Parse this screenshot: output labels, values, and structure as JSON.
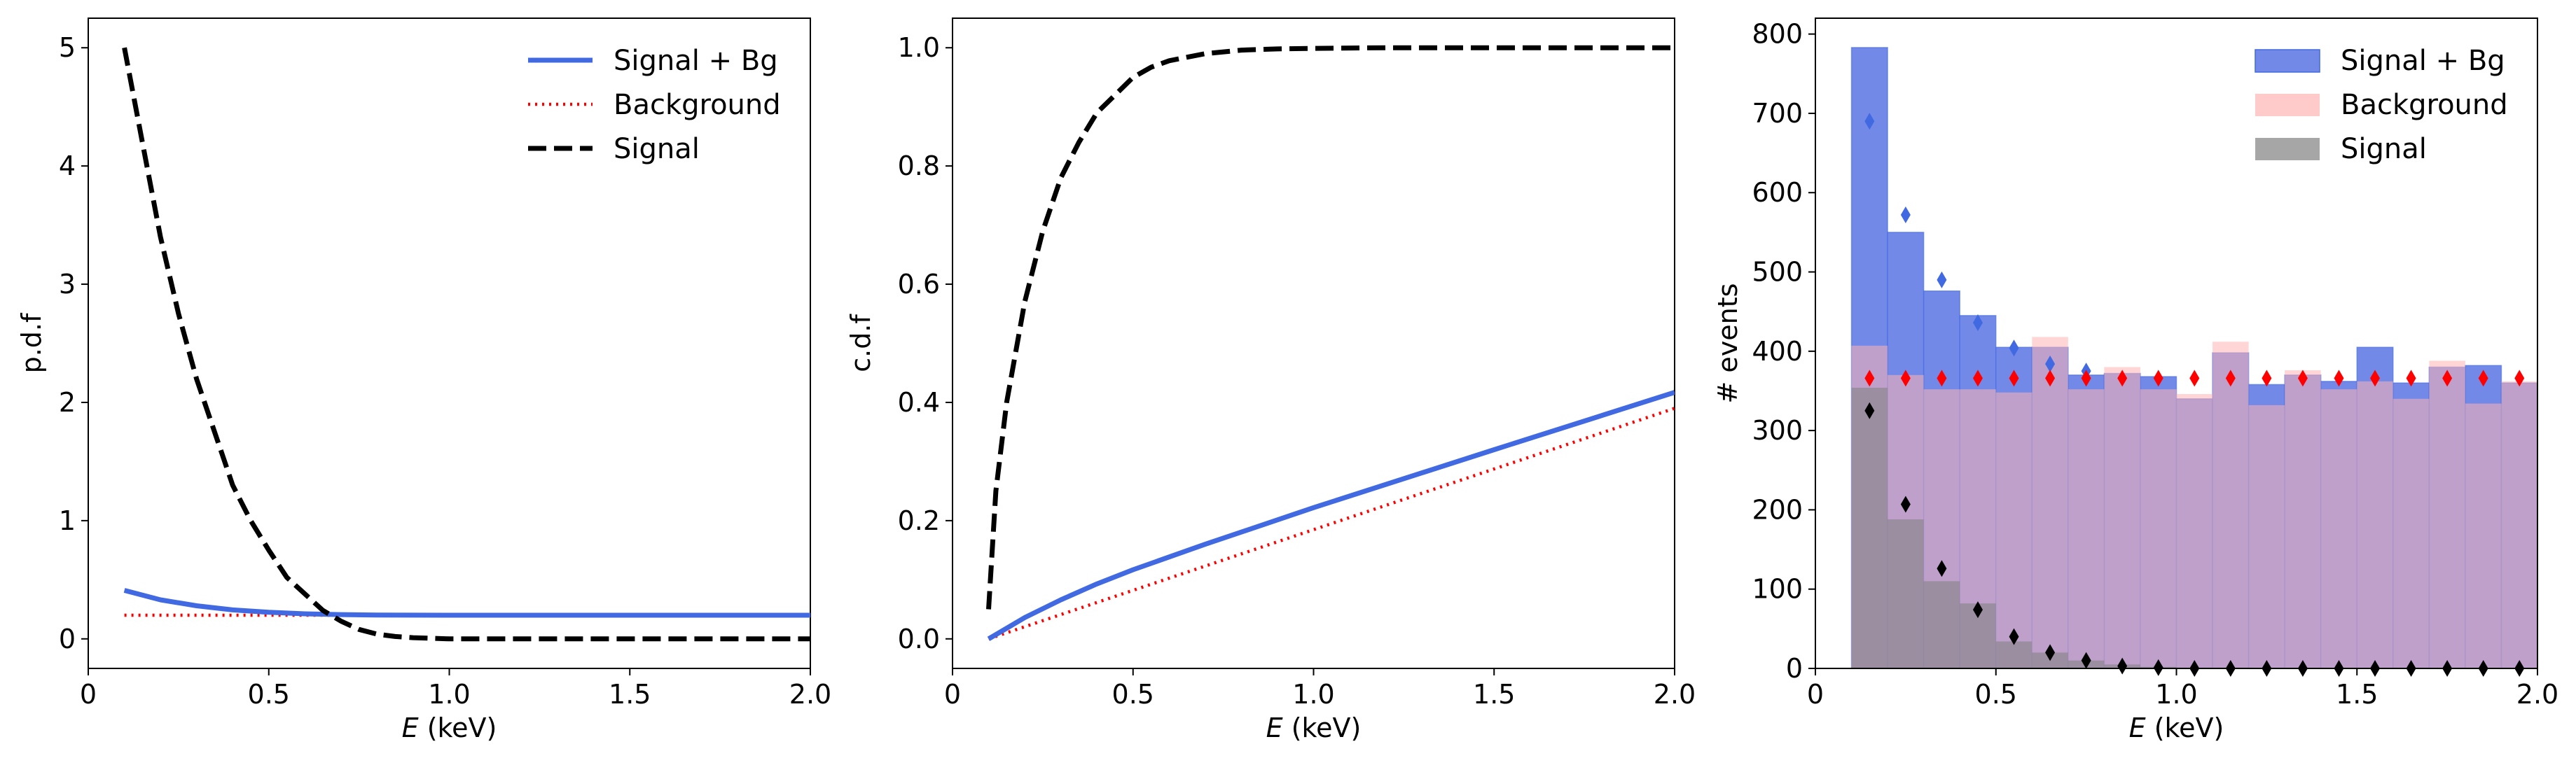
{
  "colors": {
    "signal_bg": "#4169e1",
    "background": "#ff0000",
    "signal": "#000000",
    "hist_signal_bg": "#7289e8",
    "hist_background": "#ffb3b3",
    "hist_signal": "#808080"
  },
  "chart_data": [
    {
      "type": "line",
      "xlabel_italic": "E",
      "xlabel_unit": " (keV)",
      "ylabel": "p.d.f",
      "xlim": [
        0,
        2.0
      ],
      "ylim": [
        -0.25,
        5.25
      ],
      "xticks": [
        0,
        0.5,
        1.0,
        1.5,
        2.0
      ],
      "xtick_labels": [
        "0",
        "0.5",
        "1.0",
        "1.5",
        "2.0"
      ],
      "yticks": [
        0,
        1,
        2,
        3,
        4,
        5
      ],
      "ytick_labels": [
        "0",
        "1",
        "2",
        "3",
        "4",
        "5"
      ],
      "legend_position": "top-right",
      "series": [
        {
          "name": "Signal + Bg",
          "style": "solid",
          "x": [
            0.1,
            0.2,
            0.3,
            0.4,
            0.5,
            0.6,
            0.7,
            0.8,
            1.0,
            1.5,
            2.0
          ],
          "y": [
            0.41,
            0.33,
            0.28,
            0.245,
            0.225,
            0.212,
            0.205,
            0.202,
            0.2,
            0.2,
            0.2
          ]
        },
        {
          "name": "Background",
          "style": "dotted",
          "x": [
            0.1,
            2.0
          ],
          "y": [
            0.2,
            0.2
          ]
        },
        {
          "name": "Signal",
          "style": "dashed",
          "x": [
            0.1,
            0.15,
            0.2,
            0.25,
            0.3,
            0.35,
            0.4,
            0.45,
            0.5,
            0.55,
            0.6,
            0.65,
            0.7,
            0.75,
            0.8,
            0.85,
            0.9,
            1.0,
            1.2,
            1.5,
            2.0
          ],
          "y": [
            5.0,
            4.2,
            3.4,
            2.75,
            2.2,
            1.75,
            1.3,
            1.0,
            0.75,
            0.52,
            0.38,
            0.24,
            0.15,
            0.08,
            0.04,
            0.02,
            0.01,
            0.0,
            0.0,
            0.0,
            0.0
          ]
        }
      ]
    },
    {
      "type": "line",
      "xlabel_italic": "E",
      "xlabel_unit": " (keV)",
      "ylabel": "c.d.f",
      "xlim": [
        0,
        2.0
      ],
      "ylim": [
        -0.05,
        1.05
      ],
      "xticks": [
        0,
        0.5,
        1.0,
        1.5,
        2.0
      ],
      "xtick_labels": [
        "0",
        "0.5",
        "1.0",
        "1.5",
        "2.0"
      ],
      "yticks": [
        0,
        0.2,
        0.4,
        0.6,
        0.8,
        1.0
      ],
      "ytick_labels": [
        "0.0",
        "0.2",
        "0.4",
        "0.6",
        "0.8",
        "1.0"
      ],
      "series": [
        {
          "name": "Signal + Bg",
          "style": "solid",
          "x": [
            0.1,
            0.2,
            0.3,
            0.4,
            0.5,
            0.7,
            1.0,
            1.5,
            2.0
          ],
          "y": [
            0.0,
            0.036,
            0.066,
            0.093,
            0.117,
            0.16,
            0.222,
            0.32,
            0.417
          ]
        },
        {
          "name": "Background",
          "style": "dotted",
          "x": [
            0.1,
            2.0
          ],
          "y": [
            0.0,
            0.39
          ]
        },
        {
          "name": "Signal",
          "style": "dashed",
          "x": [
            0.1,
            0.12,
            0.15,
            0.2,
            0.25,
            0.3,
            0.35,
            0.4,
            0.45,
            0.5,
            0.55,
            0.6,
            0.7,
            0.8,
            0.9,
            1.0,
            1.2,
            1.5,
            2.0
          ],
          "y": [
            0.05,
            0.25,
            0.4,
            0.57,
            0.69,
            0.78,
            0.84,
            0.89,
            0.92,
            0.95,
            0.967,
            0.978,
            0.99,
            0.996,
            0.998,
            0.999,
            1.0,
            1.0,
            1.0
          ]
        }
      ]
    },
    {
      "type": "bar",
      "xlabel_italic": "E",
      "xlabel_unit": " (keV)",
      "ylabel": "# events",
      "xlim": [
        0,
        2.0
      ],
      "ylim": [
        0,
        820
      ],
      "xticks": [
        0,
        0.5,
        1.0,
        1.5,
        2.0
      ],
      "xtick_labels": [
        "0",
        "0.5",
        "1.0",
        "1.5",
        "2.0"
      ],
      "yticks": [
        0,
        100,
        200,
        300,
        400,
        500,
        600,
        700,
        800
      ],
      "ytick_labels": [
        "0",
        "100",
        "200",
        "300",
        "400",
        "500",
        "600",
        "700",
        "800"
      ],
      "legend_position": "top-right",
      "bin_edges": [
        0.1,
        0.2,
        0.3,
        0.4,
        0.5,
        0.6,
        0.7,
        0.8,
        0.9,
        1.0,
        1.1,
        1.2,
        1.3,
        1.4,
        1.5,
        1.6,
        1.7,
        1.8,
        1.9,
        2.0
      ],
      "bin_centers": [
        0.15,
        0.25,
        0.35,
        0.45,
        0.55,
        0.65,
        0.75,
        0.85,
        0.95,
        1.05,
        1.15,
        1.25,
        1.35,
        1.45,
        1.55,
        1.65,
        1.75,
        1.85,
        1.95
      ],
      "series": [
        {
          "name": "Signal + Bg",
          "values": [
            783,
            550,
            476,
            445,
            405,
            405,
            370,
            372,
            368,
            340,
            398,
            358,
            370,
            362,
            405,
            360,
            380,
            382,
            360
          ]
        },
        {
          "name": "Background",
          "values": [
            407,
            370,
            352,
            352,
            348,
            418,
            352,
            380,
            352,
            346,
            412,
            332,
            376,
            352,
            362,
            340,
            388,
            334,
            362
          ]
        },
        {
          "name": "Signal",
          "values": [
            354,
            188,
            110,
            82,
            34,
            20,
            10,
            5,
            2,
            1,
            1,
            0,
            0,
            0,
            0,
            0,
            0,
            0,
            0
          ]
        }
      ],
      "markers": [
        {
          "series": "Signal + Bg",
          "x": [
            0.15,
            0.25,
            0.35,
            0.45,
            0.55,
            0.65,
            0.75
          ],
          "y": [
            690,
            572,
            490,
            436,
            404,
            384,
            375
          ]
        },
        {
          "series": "Background",
          "x": [
            0.15,
            0.25,
            0.35,
            0.45,
            0.55,
            0.65,
            0.75,
            0.85,
            0.95,
            1.05,
            1.15,
            1.25,
            1.35,
            1.45,
            1.55,
            1.65,
            1.75,
            1.85,
            1.95
          ],
          "y": [
            366,
            366,
            366,
            366,
            366,
            366,
            366,
            366,
            366,
            366,
            366,
            366,
            366,
            366,
            366,
            366,
            366,
            366,
            366
          ]
        },
        {
          "series": "Signal",
          "x": [
            0.15,
            0.25,
            0.35,
            0.45,
            0.55,
            0.65,
            0.75,
            0.85,
            0.95,
            1.05,
            1.15,
            1.25,
            1.35,
            1.45,
            1.55,
            1.65,
            1.75,
            1.85,
            1.95
          ],
          "y": [
            325,
            207,
            126,
            74,
            40,
            20,
            10,
            3,
            1,
            0,
            0,
            0,
            0,
            0,
            0,
            0,
            0,
            0,
            0
          ]
        }
      ]
    }
  ]
}
